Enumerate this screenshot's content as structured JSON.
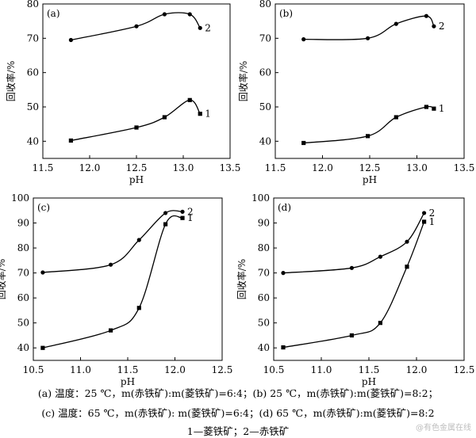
{
  "chart_data": [
    {
      "type": "scatter",
      "panel_label": "(a)",
      "xlabel": "pH",
      "ylabel": "回收率/%",
      "xlim": [
        11.5,
        13.5
      ],
      "ylim": [
        35,
        80
      ],
      "xticks": [
        "11.5",
        "12.0",
        "12.5",
        "13.0",
        "13.5"
      ],
      "yticks": [
        "40",
        "50",
        "60",
        "70",
        "80"
      ],
      "series": [
        {
          "name": "1",
          "marker": "square",
          "x": [
            11.8,
            12.5,
            12.8,
            13.07,
            13.18
          ],
          "y": [
            40.2,
            44.0,
            47.0,
            52.0,
            48.0
          ]
        },
        {
          "name": "2",
          "marker": "circle",
          "x": [
            11.8,
            12.5,
            12.8,
            13.07,
            13.18
          ],
          "y": [
            69.5,
            73.5,
            77.0,
            77.0,
            73.0
          ]
        }
      ]
    },
    {
      "type": "scatter",
      "panel_label": "(b)",
      "xlabel": "pH",
      "ylabel": "回收率/%",
      "xlim": [
        11.5,
        13.5
      ],
      "ylim": [
        35,
        80
      ],
      "xticks": [
        "11.5",
        "12.0",
        "12.5",
        "13.0",
        "13.5"
      ],
      "yticks": [
        "40",
        "50",
        "60",
        "70",
        "80"
      ],
      "series": [
        {
          "name": "1",
          "marker": "square",
          "x": [
            11.8,
            12.48,
            12.78,
            13.1,
            13.18
          ],
          "y": [
            39.5,
            41.5,
            47.0,
            50.0,
            49.5
          ]
        },
        {
          "name": "2",
          "marker": "circle",
          "x": [
            11.8,
            12.48,
            12.78,
            13.1,
            13.18
          ],
          "y": [
            69.7,
            70.0,
            74.2,
            76.5,
            73.5
          ]
        }
      ]
    },
    {
      "type": "scatter",
      "panel_label": "(c)",
      "xlabel": "pH",
      "ylabel": "回收率/%",
      "xlim": [
        10.5,
        12.5
      ],
      "ylim": [
        35,
        100
      ],
      "xticks": [
        "10.5",
        "11.0",
        "11.5",
        "12.0",
        "12.5"
      ],
      "yticks": [
        "40",
        "50",
        "60",
        "70",
        "80",
        "90",
        "100"
      ],
      "series": [
        {
          "name": "1",
          "marker": "square",
          "x": [
            10.6,
            11.32,
            11.62,
            11.9,
            12.08
          ],
          "y": [
            40.0,
            47.0,
            56.0,
            89.5,
            92.0
          ]
        },
        {
          "name": "2",
          "marker": "circle",
          "x": [
            10.6,
            11.32,
            11.62,
            11.9,
            12.08
          ],
          "y": [
            70.2,
            73.3,
            83.2,
            94.0,
            94.5
          ]
        }
      ]
    },
    {
      "type": "scatter",
      "panel_label": "(d)",
      "xlabel": "pH",
      "ylabel": "回收率/%",
      "xlim": [
        10.5,
        12.5
      ],
      "ylim": [
        35,
        100
      ],
      "xticks": [
        "10.5",
        "11.0",
        "11.5",
        "12.0",
        "12.5"
      ],
      "yticks": [
        "40",
        "50",
        "60",
        "70",
        "80",
        "90",
        "100"
      ],
      "series": [
        {
          "name": "1",
          "marker": "square",
          "x": [
            10.6,
            11.32,
            11.62,
            11.9,
            12.08
          ],
          "y": [
            40.2,
            45.0,
            50.0,
            72.5,
            90.5
          ]
        },
        {
          "name": "2",
          "marker": "circle",
          "x": [
            10.6,
            11.32,
            11.62,
            11.9,
            12.08
          ],
          "y": [
            70.0,
            72.0,
            76.5,
            82.5,
            94.0
          ]
        }
      ]
    }
  ],
  "caption": {
    "line1": "(a) 温度：25 ℃，m(赤铁矿):m(菱铁矿)=6:4；(b) 25 ℃，m(赤铁矿):m(菱铁矿)=8:2；",
    "line2": "(c) 温度：65 ℃，m(赤铁矿): m(菱铁矿)=6:4；(d) 65 ℃，m(赤铁矿):m(菱铁矿)=8:2",
    "line3": "1—菱铁矿；2—赤铁矿"
  },
  "watermark": "@有色金属在线"
}
